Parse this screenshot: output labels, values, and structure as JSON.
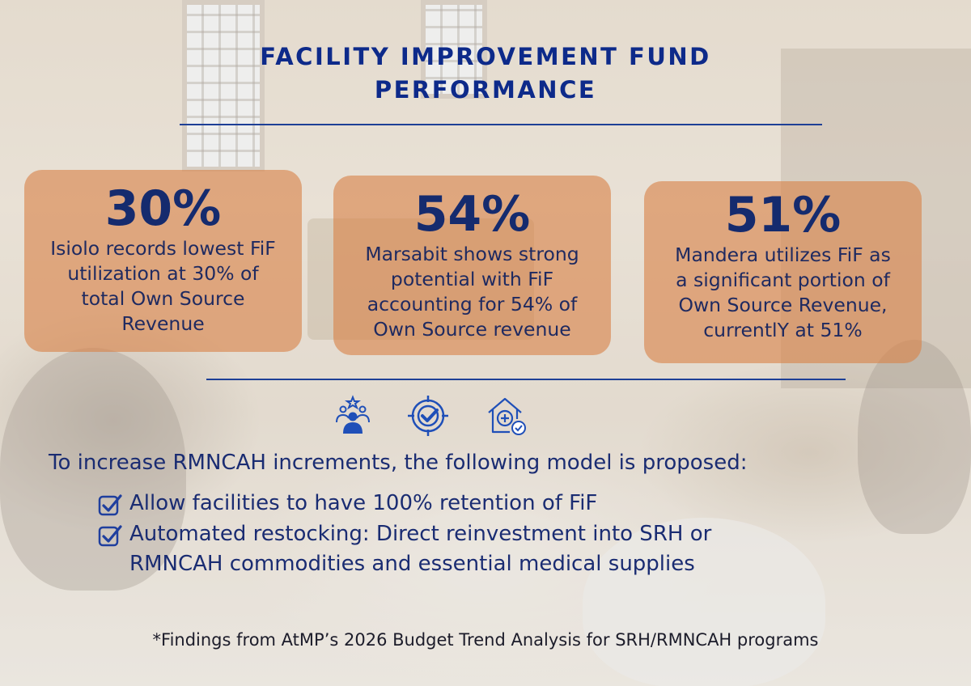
{
  "title": {
    "line1": "FACILITY IMPROVEMENT FUND",
    "line2": "PERFORMANCE"
  },
  "cards": [
    {
      "percent": "30%",
      "desc_lines": [
        "Isiolo records lowest FiF",
        "utilization at 30% of",
        "total Own Source",
        "Revenue"
      ]
    },
    {
      "percent": "54%",
      "desc_lines": [
        "Marsabit shows strong",
        "potential with FiF",
        "accounting for 54% of",
        "Own Source revenue"
      ]
    },
    {
      "percent": "51%",
      "desc_lines": [
        "Mandera utilizes FiF as",
        "a significant portion of",
        "Own Source Revenue,",
        "currentlY at 51%"
      ]
    }
  ],
  "icons": [
    "team-icon",
    "target-check-icon",
    "health-facility-icon"
  ],
  "proposal": {
    "lead": "To increase RMNCAH increments, the following model is proposed:",
    "items": [
      {
        "lines": [
          "Allow facilities to have 100% retention of FiF"
        ]
      },
      {
        "lines": [
          "Automated restocking: Direct reinvestment into SRH or",
          "RMNCAH commodities and essential medical supplies"
        ]
      }
    ]
  },
  "footnote": "*Findings from AtMP’s 2026 Budget Trend Analysis for SRH/RMNCAH programs",
  "colors": {
    "title": "#0d2a8a",
    "card": "#d88248",
    "text": "#1a2c72"
  }
}
